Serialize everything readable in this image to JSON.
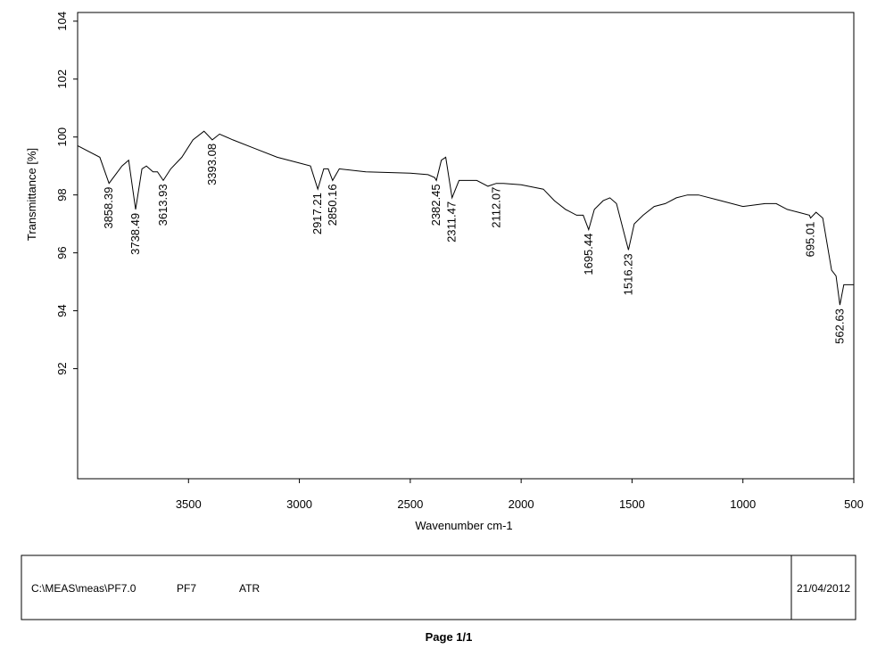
{
  "chart_data": {
    "type": "line",
    "xlabel": "Wavenumber cm-1",
    "ylabel": "Transmittance [%]",
    "color": "#000000",
    "xlim": [
      4000,
      500
    ],
    "ylim": [
      88.2,
      104.3
    ],
    "xticks": [
      3500,
      3000,
      2500,
      2000,
      1500,
      1000,
      500
    ],
    "yticks": [
      92,
      94,
      96,
      98,
      100,
      102,
      104
    ],
    "x": [
      4000,
      3900,
      3858.39,
      3800,
      3770,
      3738.49,
      3710,
      3690,
      3660,
      3640,
      3613.93,
      3580,
      3530,
      3480,
      3430,
      3393.08,
      3360,
      3300,
      3200,
      3100,
      3000,
      2950,
      2917.21,
      2890,
      2870,
      2850.16,
      2820,
      2700,
      2500,
      2420,
      2390,
      2382.45,
      2360,
      2340,
      2311.47,
      2280,
      2200,
      2150,
      2112.07,
      2080,
      2000,
      1900,
      1850,
      1800,
      1750,
      1720,
      1695.44,
      1670,
      1630,
      1600,
      1570,
      1540,
      1516.23,
      1490,
      1450,
      1400,
      1350,
      1300,
      1250,
      1200,
      1100,
      1000,
      900,
      850,
      800,
      750,
      700,
      695.01,
      670,
      640,
      600,
      580,
      562.63,
      545,
      500
    ],
    "values": [
      99.7,
      99.3,
      98.4,
      99.0,
      99.2,
      97.5,
      98.9,
      99.0,
      98.8,
      98.8,
      98.5,
      98.9,
      99.3,
      99.9,
      100.2,
      99.9,
      100.1,
      99.9,
      99.6,
      99.3,
      99.1,
      99.0,
      98.2,
      98.9,
      98.9,
      98.5,
      98.9,
      98.8,
      98.75,
      98.7,
      98.6,
      98.5,
      99.2,
      99.3,
      97.9,
      98.5,
      98.5,
      98.3,
      98.4,
      98.4,
      98.35,
      98.2,
      97.8,
      97.5,
      97.3,
      97.3,
      96.8,
      97.5,
      97.8,
      97.9,
      97.7,
      96.8,
      96.1,
      97.0,
      97.3,
      97.6,
      97.7,
      97.9,
      98.0,
      98.0,
      97.8,
      97.6,
      97.7,
      97.7,
      97.5,
      97.4,
      97.3,
      97.2,
      97.4,
      97.2,
      95.4,
      95.2,
      94.2,
      94.9,
      94.9
    ],
    "peak_labels": [
      3858.39,
      3738.49,
      3613.93,
      3393.08,
      2917.21,
      2850.16,
      2382.45,
      2311.47,
      2112.07,
      1695.44,
      1516.23,
      695.01,
      562.63
    ]
  },
  "footer": {
    "path": "C:\\MEAS\\meas\\PF7.0",
    "sample": "PF7",
    "method": "ATR",
    "date": "21/04/2012",
    "page": "Page 1/1"
  }
}
